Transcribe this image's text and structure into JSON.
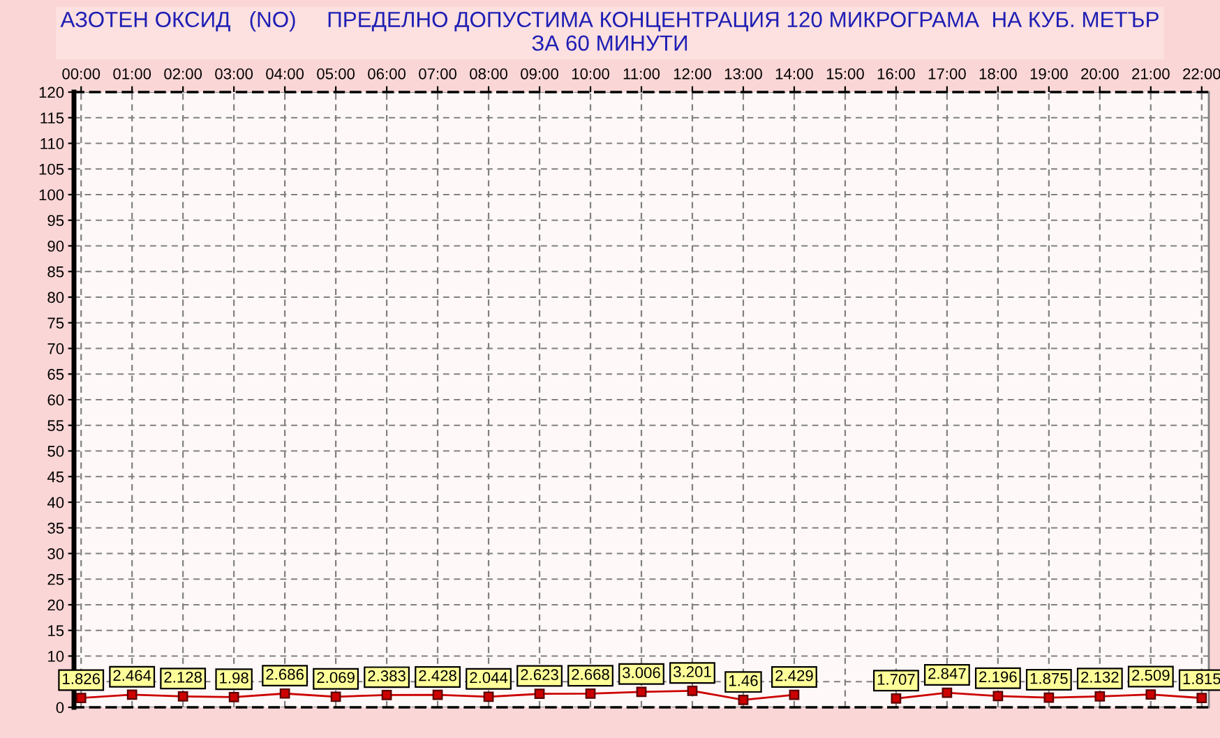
{
  "chart_data": {
    "type": "line",
    "title": "АЗОТЕН ОКСИД   (NO)     ПРЕДЕЛНО ДОПУСТИМА КОНЦЕНТРАЦИЯ 120 МИКРОГРАМА  НА КУБ. МЕТЪР\nЗА 60 МИНУТИ",
    "categories": [
      "00:00",
      "01:00",
      "02:00",
      "03:00",
      "04:00",
      "05:00",
      "06:00",
      "07:00",
      "08:00",
      "09:00",
      "10:00",
      "11:00",
      "12:00",
      "13:00",
      "14:00",
      "15:00",
      "16:00",
      "17:00",
      "18:00",
      "19:00",
      "20:00",
      "21:00",
      "22:00"
    ],
    "series": [
      {
        "color": "#cc0000",
        "values": [
          1.826,
          2.464,
          2.128,
          1.98,
          2.686,
          2.069,
          2.383,
          2.428,
          2.044,
          2.623,
          2.668,
          3.006,
          3.201,
          1.46,
          2.429,
          null,
          1.707,
          2.847,
          2.196,
          1.875,
          2.132,
          2.509,
          1.815
        ]
      }
    ],
    "ylim": [
      0,
      120
    ],
    "yticks": [
      0,
      {
        "value": 5,
        "label": null
      },
      10,
      15,
      20,
      25,
      30,
      35,
      40,
      45,
      50,
      55,
      60,
      65,
      70,
      75,
      80,
      85,
      90,
      95,
      100,
      105,
      110,
      115,
      120
    ],
    "grid": true,
    "marker": "square",
    "line_style": "solid",
    "data_labels": true
  }
}
